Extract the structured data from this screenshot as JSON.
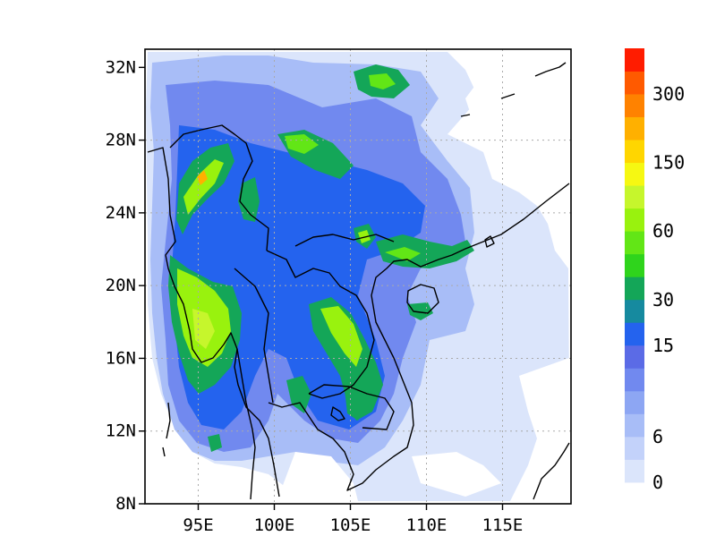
{
  "map": {
    "lat_labels": [
      "32N",
      "28N",
      "24N",
      "20N",
      "16N",
      "12N",
      "8N"
    ],
    "lon_labels": [
      "95E",
      "100E",
      "105E",
      "110E",
      "115E"
    ],
    "extent": {
      "lon_min": 91.5,
      "lon_max": 119.5,
      "lat_min": 8,
      "lat_max": 33
    },
    "grid": "dotted",
    "field": "gridded values shaded by colorbar classes",
    "colors": {
      "land_outline": "#000000",
      "grid": "#aaaaaa",
      "missing": "#ffffff"
    }
  },
  "colorbar": {
    "labels": [
      "300",
      "150",
      "60",
      "30",
      "15",
      "6",
      "0"
    ],
    "levels": [
      0,
      3,
      6,
      9,
      12,
      15,
      20,
      25,
      30,
      40,
      50,
      60,
      80,
      100,
      150,
      200,
      250,
      300
    ],
    "colors": [
      "#dbe5fb",
      "#c3d2fa",
      "#a8bdf7",
      "#8da6f3",
      "#7189ef",
      "#5b6be6",
      "#2463ee",
      "#168a9f",
      "#14a658",
      "#2fd41c",
      "#62e616",
      "#99f20e",
      "#c6f62c",
      "#f6f812",
      "#ffd600",
      "#ffb000",
      "#ff8200",
      "#ff5a00",
      "#ff1c00"
    ]
  }
}
